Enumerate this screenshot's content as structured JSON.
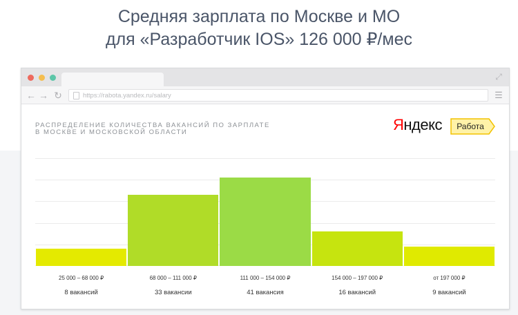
{
  "headline": {
    "line1": "Средняя зарплата по Москве и МО",
    "line2": "для «Разработчик IOS» 126 000 ₽/мес"
  },
  "browser": {
    "url": "https://rabota.yandex.ru/salary",
    "icons": {
      "back": "arrow-left-icon",
      "forward": "arrow-right-icon",
      "reload": "reload-icon",
      "menu": "hamburger-menu-icon",
      "expand": "expand-icon"
    },
    "window_dots": [
      "#ee6a5e",
      "#f5be4f",
      "#5cc6a8"
    ]
  },
  "brand": {
    "logo_text": "Яндекс",
    "badge_label": "Работа",
    "badge_color": "#fff2a8",
    "badge_border": "#f2c200"
  },
  "chart_data": {
    "type": "bar",
    "title_line1": "Распределение количества вакансий по зарплате",
    "title_line2": "в Москве и Московской области",
    "categories": [
      "25 000 – 68 000 ₽",
      "68 000 – 111 000 ₽",
      "111 000 – 154 000 ₽",
      "154 000 – 197 000 ₽",
      "от 197 000 ₽"
    ],
    "values": [
      8,
      33,
      41,
      16,
      9
    ],
    "value_labels": [
      "8 вакансий",
      "33 вакансии",
      "41 вакансия",
      "16 вакансий",
      "9 вакансий"
    ],
    "colors": [
      "#e4ea00",
      "#b0dc28",
      "#9bdb46",
      "#c6e40f",
      "#e0ea00"
    ],
    "ylim": [
      0,
      50
    ],
    "grid": true,
    "gridline_count": 5
  }
}
